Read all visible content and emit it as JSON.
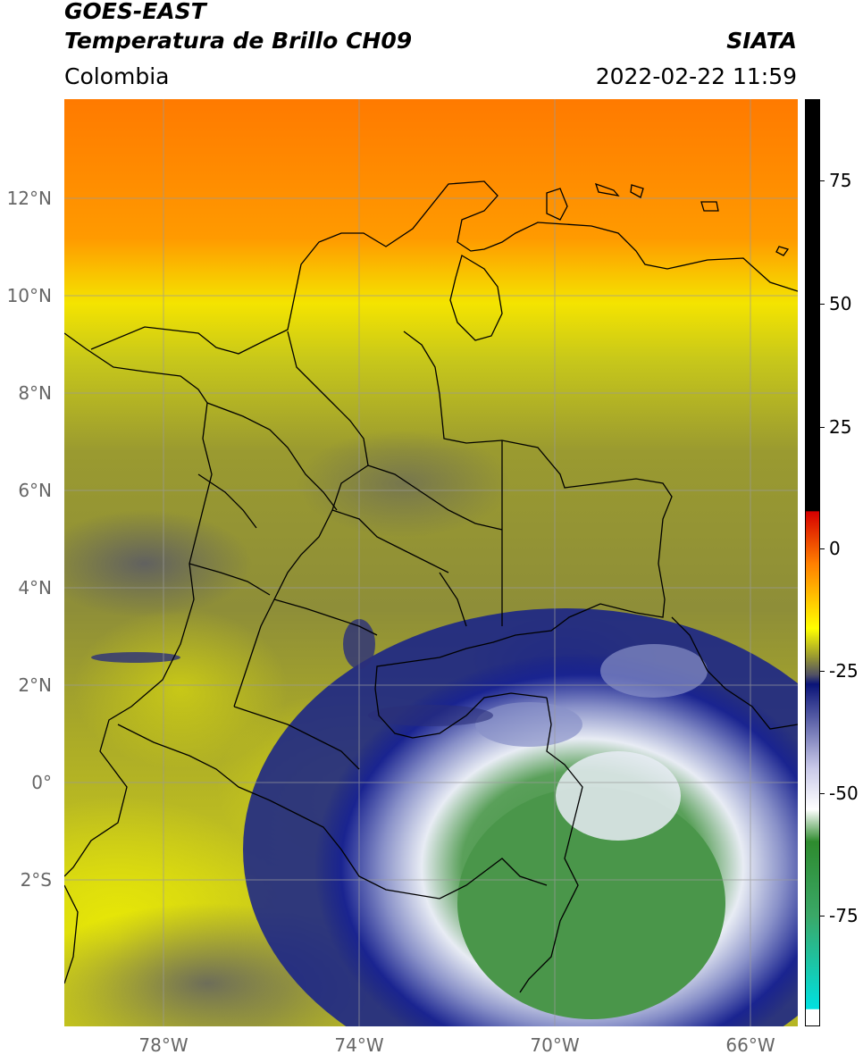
{
  "header": {
    "title_line1": "GOES-EAST",
    "title_line2": "Temperatura de Brillo CH09",
    "region": "Colombia",
    "organization": "SIATA",
    "timestamp": "2022-02-22 11:59"
  },
  "map": {
    "lat_labels": [
      "12°N",
      "10°N",
      "8°N",
      "6°N",
      "4°N",
      "2°N",
      "0°",
      "2°S"
    ],
    "lon_labels": [
      "78°W",
      "74°W",
      "70°W",
      "66°W"
    ],
    "colors": {
      "orange": "#ff7800",
      "yellow": "#f0f000",
      "olive": "#9a9a30",
      "slate": "#55556a",
      "navy": "#141e8c",
      "white": "#f0f0ff",
      "green": "#3c8c3c",
      "coast_line": "#000000",
      "grid_line": "#9a9a9a"
    }
  },
  "colorbar": {
    "tick_labels": [
      "75",
      "50",
      "25",
      "0",
      "-25",
      "-50",
      "-75"
    ],
    "colors": [
      "#000000",
      "#d60000",
      "#ff7f00",
      "#ffff00",
      "#9a9a30",
      "#505064",
      "#0a1478",
      "#ffffff",
      "#2e8b2e",
      "#00e0e0",
      "#ffffff"
    ]
  }
}
